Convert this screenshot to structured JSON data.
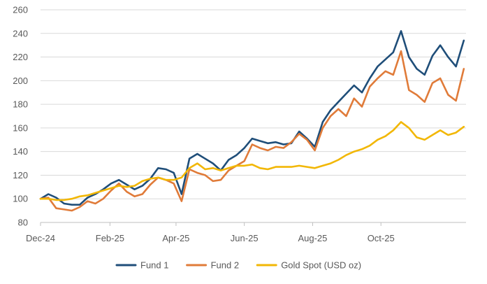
{
  "chart_data": {
    "type": "line",
    "title": "",
    "xlabel": "",
    "ylabel": "",
    "ylim": [
      80,
      260
    ],
    "yticks": [
      80,
      100,
      120,
      140,
      160,
      180,
      200,
      220,
      240,
      260
    ],
    "xlim": [
      "2024-12-01",
      "2025-12-16"
    ],
    "xticks": [
      {
        "date": "2024-12-01",
        "label": "Dec-24"
      },
      {
        "date": "2025-02-01",
        "label": "Feb-25"
      },
      {
        "date": "2025-04-01",
        "label": "Apr-25"
      },
      {
        "date": "2025-06-01",
        "label": "Jun-25"
      },
      {
        "date": "2025-08-01",
        "label": "Aug-25"
      },
      {
        "date": "2025-10-01",
        "label": "Oct-25"
      }
    ],
    "grid": "horizontal",
    "legend": "bottom",
    "x": [
      "2024-12-01",
      "2024-12-08",
      "2024-12-15",
      "2024-12-22",
      "2024-12-29",
      "2025-01-05",
      "2025-01-12",
      "2025-01-19",
      "2025-01-26",
      "2025-02-02",
      "2025-02-09",
      "2025-02-16",
      "2025-02-23",
      "2025-03-02",
      "2025-03-09",
      "2025-03-16",
      "2025-03-23",
      "2025-03-30",
      "2025-04-06",
      "2025-04-13",
      "2025-04-20",
      "2025-04-27",
      "2025-05-04",
      "2025-05-11",
      "2025-05-18",
      "2025-05-25",
      "2025-06-01",
      "2025-06-08",
      "2025-06-15",
      "2025-06-22",
      "2025-06-29",
      "2025-07-06",
      "2025-07-13",
      "2025-07-20",
      "2025-07-27",
      "2025-08-03",
      "2025-08-10",
      "2025-08-17",
      "2025-08-24",
      "2025-08-31",
      "2025-09-07",
      "2025-09-14",
      "2025-09-21",
      "2025-09-28",
      "2025-10-05",
      "2025-10-12",
      "2025-10-19",
      "2025-10-26",
      "2025-11-02",
      "2025-11-09",
      "2025-11-16",
      "2025-11-23",
      "2025-11-30",
      "2025-12-07",
      "2025-12-14"
    ],
    "series": [
      {
        "name": "Fund 1",
        "color": "#1f4e79",
        "values": [
          100,
          104,
          101,
          96,
          95,
          95,
          101,
          104,
          108,
          113,
          116,
          112,
          108,
          111,
          117,
          126,
          125,
          122,
          104,
          134,
          138,
          134,
          130,
          124,
          133,
          137,
          143,
          151,
          149,
          147,
          148,
          146,
          147,
          157,
          151,
          144,
          165,
          175,
          182,
          189,
          196,
          190,
          202,
          212,
          218,
          224,
          242,
          220,
          210,
          205,
          221,
          230,
          220,
          212,
          234
        ]
      },
      {
        "name": "Fund 2",
        "color": "#e07b39",
        "values": [
          100,
          101,
          92,
          91,
          90,
          93,
          98,
          96,
          100,
          107,
          113,
          106,
          102,
          104,
          112,
          118,
          116,
          113,
          98,
          125,
          122,
          120,
          115,
          116,
          124,
          128,
          132,
          146,
          143,
          141,
          144,
          143,
          148,
          155,
          150,
          141,
          160,
          170,
          176,
          170,
          185,
          178,
          195,
          202,
          208,
          205,
          225,
          192,
          188,
          182,
          198,
          202,
          188,
          183,
          210
        ]
      },
      {
        "name": "Gold Spot (USD oz)",
        "color": "#f2b705",
        "values": [
          100,
          100,
          99,
          99,
          100,
          102,
          103,
          105,
          107,
          109,
          111,
          110,
          111,
          115,
          117,
          118,
          116,
          116,
          118,
          126,
          130,
          125,
          126,
          124,
          126,
          128,
          128,
          129,
          126,
          125,
          127,
          127,
          127,
          128,
          127,
          126,
          128,
          130,
          133,
          137,
          140,
          142,
          145,
          150,
          153,
          158,
          165,
          160,
          152,
          150,
          154,
          158,
          154,
          156,
          161
        ]
      }
    ]
  }
}
